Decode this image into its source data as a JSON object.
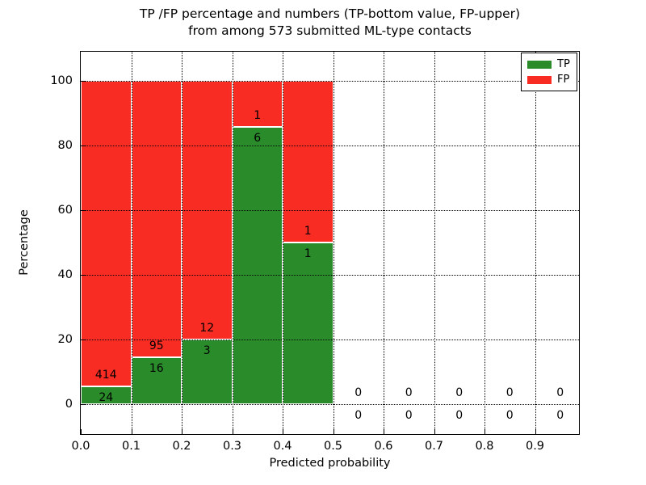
{
  "figure": {
    "title_line1": "TP /FP percentage and numbers (TP-bottom value, FP-upper)",
    "title_line2": "from among 573 submitted ML-type contacts",
    "xlabel": "Predicted probability",
    "ylabel": "Percentage"
  },
  "legend": {
    "position": "upper right",
    "items": [
      {
        "label": "TP",
        "color": "#2a8b2a"
      },
      {
        "label": "FP",
        "color": "#f92c24"
      }
    ]
  },
  "chart_data": {
    "type": "bar",
    "stacked": true,
    "title": "TP /FP percentage and numbers (TP-bottom value, FP-upper) from among 573 submitted ML-type contacts",
    "xlabel": "Predicted probability",
    "ylabel": "Percentage",
    "total_contacts": 573,
    "bin_edges": [
      0.0,
      0.1,
      0.2,
      0.3,
      0.4,
      0.5,
      0.6,
      0.7,
      0.8,
      0.9,
      1.0
    ],
    "series": [
      {
        "name": "TP",
        "color": "#2a8b2a",
        "counts": [
          24,
          16,
          3,
          6,
          1,
          0,
          0,
          0,
          0,
          0
        ]
      },
      {
        "name": "FP",
        "color": "#f92c24",
        "counts": [
          414,
          95,
          12,
          1,
          1,
          0,
          0,
          0,
          0,
          0
        ]
      }
    ],
    "bar_percentages_tp": [
      5.48,
      14.41,
      20.0,
      85.71,
      50.0,
      0,
      0,
      0,
      0,
      0
    ],
    "note": "bars show per-bin percentage share, TP bottom / FP top stacked to 100%; annotations are raw counts (TP below boundary, FP above)",
    "xticks": [
      "0.0",
      "0.1",
      "0.2",
      "0.3",
      "0.4",
      "0.5",
      "0.6",
      "0.7",
      "0.8",
      "0.9"
    ],
    "yticks": [
      0,
      20,
      40,
      60,
      80,
      100
    ],
    "xlim": [
      0.0,
      1.0
    ],
    "ylim": [
      -10,
      110
    ],
    "grid": "dotted, drawn above bars",
    "bar_edge_color": "#ffffff",
    "legend_position": "upper right"
  }
}
